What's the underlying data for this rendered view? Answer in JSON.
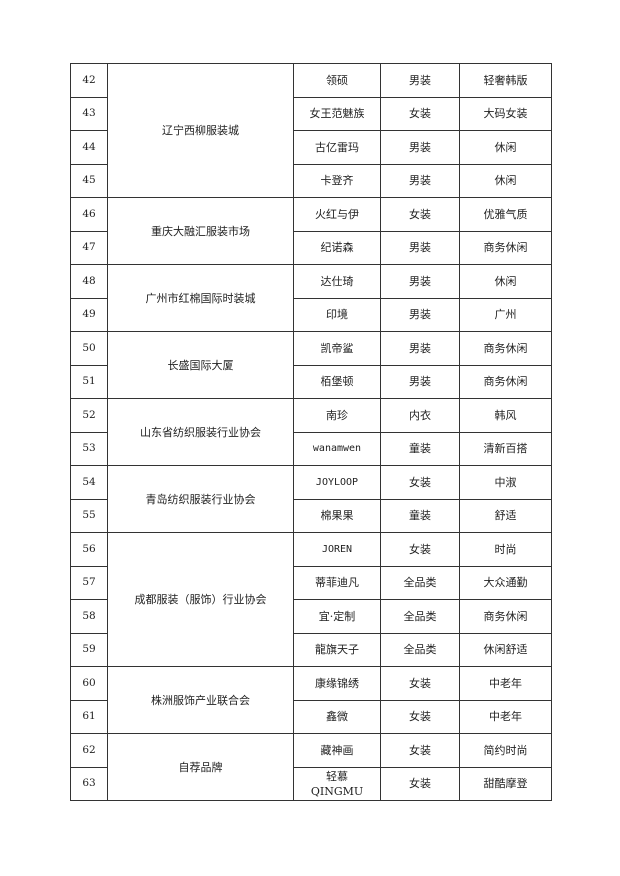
{
  "groups": [
    {
      "org": "辽宁西柳服装城",
      "rows": [
        {
          "num": "42",
          "brand": "领硕",
          "category": "男装",
          "style": "轻奢韩版"
        },
        {
          "num": "43",
          "brand": "女王范魅族",
          "category": "女装",
          "style": "大码女装"
        },
        {
          "num": "44",
          "brand": "古亿雷玛",
          "category": "男装",
          "style": "休闲"
        },
        {
          "num": "45",
          "brand": "卡登齐",
          "category": "男装",
          "style": "休闲"
        }
      ]
    },
    {
      "org": "重庆大融汇服装市场",
      "rows": [
        {
          "num": "46",
          "brand": "火红与伊",
          "category": "女装",
          "style": "优雅气质"
        },
        {
          "num": "47",
          "brand": "纪诺森",
          "category": "男装",
          "style": "商务休闲"
        }
      ]
    },
    {
      "org": "广州市红棉国际时装城",
      "rows": [
        {
          "num": "48",
          "brand": "达仕琦",
          "category": "男装",
          "style": "休闲"
        },
        {
          "num": "49",
          "brand": "印境",
          "category": "男装",
          "style": "广州"
        }
      ]
    },
    {
      "org": "长盛国际大厦",
      "rows": [
        {
          "num": "50",
          "brand": "凯帝鲨",
          "category": "男装",
          "style": "商务休闲"
        },
        {
          "num": "51",
          "brand": "栢堡顿",
          "category": "男装",
          "style": "商务休闲"
        }
      ]
    },
    {
      "org": "山东省纺织服装行业协会",
      "rows": [
        {
          "num": "52",
          "brand": "南珍",
          "category": "内衣",
          "style": "韩风"
        },
        {
          "num": "53",
          "brand": "wanamwen",
          "category": "童装",
          "style": "清新百搭"
        }
      ]
    },
    {
      "org": "青岛纺织服装行业协会",
      "rows": [
        {
          "num": "54",
          "brand": "JOYLOOP",
          "category": "女装",
          "style": "中淑"
        },
        {
          "num": "55",
          "brand": "棉果果",
          "category": "童装",
          "style": "舒适"
        }
      ]
    },
    {
      "org": "成都服装（服饰）行业协会",
      "rows": [
        {
          "num": "56",
          "brand": "JOREN",
          "category": "女装",
          "style": "时尚"
        },
        {
          "num": "57",
          "brand": "蒂菲迪凡",
          "category": "全品类",
          "style": "大众通勤"
        },
        {
          "num": "58",
          "brand": "宜·定制",
          "category": "全品类",
          "style": "商务休闲"
        },
        {
          "num": "59",
          "brand": "龍旗天子",
          "category": "全品类",
          "style": "休闲舒适"
        }
      ]
    },
    {
      "org": "株洲服饰产业联合会",
      "rows": [
        {
          "num": "60",
          "brand": "康缘锦绣",
          "category": "女装",
          "style": "中老年"
        },
        {
          "num": "61",
          "brand": "鑫微",
          "category": "女装",
          "style": "中老年"
        }
      ]
    },
    {
      "org": "自荐品牌",
      "rows": [
        {
          "num": "62",
          "brand": "藏神画",
          "category": "女装",
          "style": "简约时尚"
        },
        {
          "num": "63",
          "brand": "轻慕\nQINGMU",
          "category": "女装",
          "style": "甜酷摩登"
        }
      ]
    }
  ]
}
